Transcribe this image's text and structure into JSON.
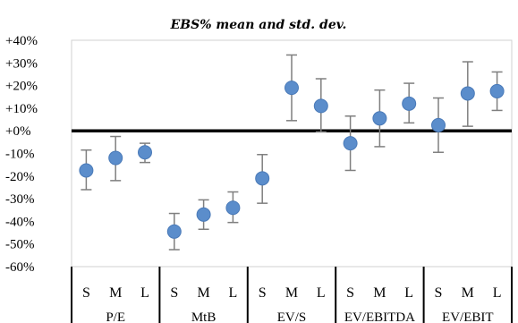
{
  "chart_data": {
    "type": "scatter",
    "title": "EBS% mean and std. dev.",
    "xlabel": "",
    "ylabel": "",
    "ylim": [
      -60,
      40
    ],
    "y_ticks": [
      "+40%",
      "+30%",
      "+20%",
      "+10%",
      "+0%",
      "-10%",
      "-20%",
      "-30%",
      "-40%",
      "-50%",
      "-60%"
    ],
    "y_tick_values": [
      40,
      30,
      20,
      10,
      0,
      -10,
      -20,
      -30,
      -40,
      -50,
      -60
    ],
    "grid": false,
    "zero_line": true,
    "marker_color": "#5B8DCB",
    "groups": [
      {
        "label": "P/E",
        "points": [
          {
            "cat": "S",
            "mean": -17.5,
            "low": -26,
            "high": -8.5
          },
          {
            "cat": "M",
            "mean": -12,
            "low": -22,
            "high": -2.5
          },
          {
            "cat": "L",
            "mean": -9.5,
            "low": -14,
            "high": -5.5
          }
        ]
      },
      {
        "label": "MtB",
        "points": [
          {
            "cat": "S",
            "mean": -44.5,
            "low": -52.5,
            "high": -36.5
          },
          {
            "cat": "M",
            "mean": -37,
            "low": -43.5,
            "high": -30.5
          },
          {
            "cat": "L",
            "mean": -34,
            "low": -40.5,
            "high": -27
          }
        ]
      },
      {
        "label": "EV/S",
        "points": [
          {
            "cat": "S",
            "mean": -21,
            "low": -32,
            "high": -10.5
          },
          {
            "cat": "M",
            "mean": 19,
            "low": 4.5,
            "high": 33.5
          },
          {
            "cat": "L",
            "mean": 11,
            "low": -0.5,
            "high": 23
          }
        ]
      },
      {
        "label": "EV/EBITDA",
        "points": [
          {
            "cat": "S",
            "mean": -5.5,
            "low": -17.5,
            "high": 6.5
          },
          {
            "cat": "M",
            "mean": 5.5,
            "low": -7,
            "high": 18
          },
          {
            "cat": "L",
            "mean": 12,
            "low": 3.5,
            "high": 21
          }
        ]
      },
      {
        "label": "EV/EBIT",
        "points": [
          {
            "cat": "S",
            "mean": 2.5,
            "low": -9.5,
            "high": 14.5
          },
          {
            "cat": "M",
            "mean": 16.5,
            "low": 2,
            "high": 30.5
          },
          {
            "cat": "L",
            "mean": 17.5,
            "low": 9,
            "high": 26
          }
        ]
      }
    ]
  }
}
